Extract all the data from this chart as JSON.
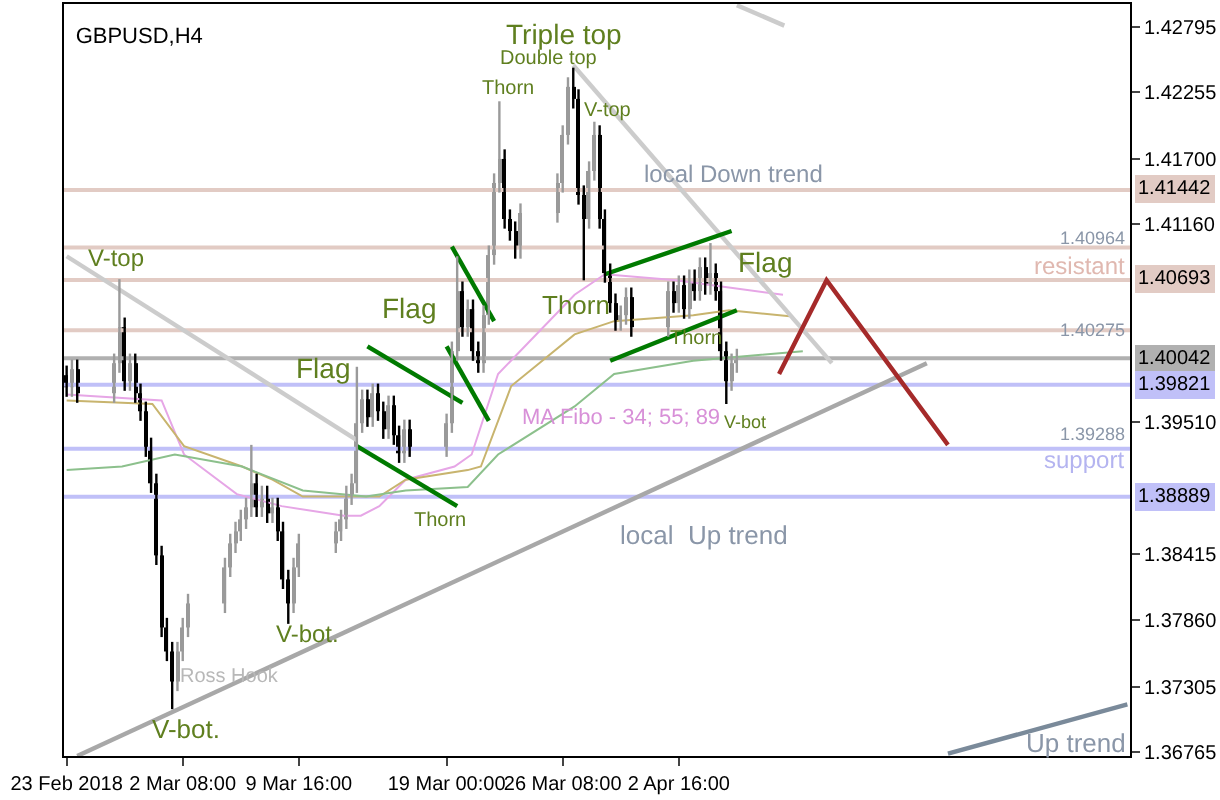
{
  "chart_data": {
    "type": "candlestick",
    "title": "GBPUSD,H4",
    "colors": [
      "#000000",
      "#9a9a9a",
      "#000000",
      "#9a9a9a",
      "#9a9a9a",
      "#000000",
      "#9a9a9a",
      "#000000",
      "#000000",
      "#000000",
      "#000000",
      "#000000",
      "#000000",
      "#000000",
      "#000000",
      "#9a9a9a",
      "#9a9a9a",
      "#9a9a9a",
      "#9a9a9a",
      "#9a9a9a",
      "#9a9a9a",
      "#9a9a9a",
      "#9a9a9a",
      "#9a9a9a",
      "#000000",
      "#9a9a9a",
      "#000000",
      "#9a9a9a",
      "#000000",
      "#000000",
      "#000000",
      "#9a9a9a",
      "#9a9a9a",
      "#9a9a9a",
      "#9a9a9a",
      "#9a9a9a",
      "#9a9a9a",
      "#9a9a9a",
      "#9a9a9a",
      "#000000",
      "#9a9a9a",
      "#000000",
      "#000000",
      "#9a9a9a",
      "#000000",
      "#000000",
      "#9a9a9a",
      "#000000",
      "#9a9a9a",
      "#9a9a9a",
      "#9a9a9a",
      "#000000",
      "#9a9a9a",
      "#000000",
      "#000000",
      "#9a9a9a",
      "#9a9a9a",
      "#9a9a9a",
      "#9a9a9a",
      "#000000",
      "#000000",
      "#000000",
      "#9a9a9a",
      "#9a9a9a",
      "#9a9a9a",
      "#9a9a9a",
      "#000000",
      "#000000",
      "#000000",
      "#9a9a9a",
      "#9a9a9a",
      "#000000",
      "#000000",
      "#000000",
      "#000000",
      "#9a9a9a",
      "#9a9a9a",
      "#000000",
      "#9a9a9a",
      "#000000",
      "#9a9a9a",
      "#000000",
      "#9a9a9a",
      "#000000",
      "#9a9a9a",
      "#000000",
      "#9a9a9a",
      "#000000",
      "#000000",
      "#000000",
      "#9a9a9a",
      "#9a9a9a"
    ],
    "grid": false,
    "x": [
      "2018-02-23T00:00",
      "2018-02-23T08:00",
      "2018-02-23T16:00",
      "2018-02-26T00:00",
      "2018-02-26T08:00",
      "2018-02-26T16:00",
      "2018-02-27T00:00",
      "2018-02-27T08:00",
      "2018-02-27T16:00",
      "2018-02-28T00:00",
      "2018-02-28T08:00",
      "2018-02-28T16:00",
      "2018-03-01T00:00",
      "2018-03-01T08:00",
      "2018-03-01T16:00",
      "2018-03-02T00:00",
      "2018-03-02T08:00",
      "2018-03-02T16:00",
      "2018-03-05T00:00",
      "2018-03-05T08:00",
      "2018-03-05T16:00",
      "2018-03-06T00:00",
      "2018-03-06T08:00",
      "2018-03-06T16:00",
      "2018-03-07T00:00",
      "2018-03-07T08:00",
      "2018-03-07T16:00",
      "2018-03-08T00:00",
      "2018-03-08T08:00",
      "2018-03-08T16:00",
      "2018-03-09T00:00",
      "2018-03-09T08:00",
      "2018-03-09T16:00",
      "2018-03-12T00:00",
      "2018-03-12T08:00",
      "2018-03-12T16:00",
      "2018-03-13T00:00",
      "2018-03-13T08:00",
      "2018-03-13T16:00",
      "2018-03-14T00:00",
      "2018-03-14T08:00",
      "2018-03-14T16:00",
      "2018-03-15T00:00",
      "2018-03-15T08:00",
      "2018-03-15T16:00",
      "2018-03-16T00:00",
      "2018-03-16T08:00",
      "2018-03-16T16:00",
      "2018-03-19T00:00",
      "2018-03-19T08:00",
      "2018-03-19T16:00",
      "2018-03-20T00:00",
      "2018-03-20T08:00",
      "2018-03-20T16:00",
      "2018-03-21T00:00",
      "2018-03-21T08:00",
      "2018-03-21T16:00",
      "2018-03-22T00:00",
      "2018-03-22T08:00",
      "2018-03-22T16:00",
      "2018-03-23T00:00",
      "2018-03-23T08:00",
      "2018-03-23T16:00",
      "2018-03-26T00:00",
      "2018-03-26T08:00",
      "2018-03-26T16:00",
      "2018-03-27T00:00",
      "2018-03-27T08:00",
      "2018-03-27T16:00",
      "2018-03-28T00:00",
      "2018-03-28T08:00",
      "2018-03-28T16:00",
      "2018-03-29T00:00",
      "2018-03-29T08:00",
      "2018-03-29T16:00",
      "2018-03-30T00:00",
      "2018-03-30T08:00",
      "2018-03-30T16:00",
      "2018-04-02T00:00",
      "2018-04-02T08:00",
      "2018-04-02T16:00",
      "2018-04-03T00:00",
      "2018-04-03T08:00",
      "2018-04-03T16:00",
      "2018-04-04T00:00",
      "2018-04-04T08:00",
      "2018-04-04T16:00",
      "2018-04-05T00:00",
      "2018-04-05T08:00",
      "2018-04-05T16:00",
      "2018-04-06T00:00",
      "2018-04-06T08:00"
    ],
    "ohlc": [
      [
        1.399,
        1.3998,
        1.3972,
        1.398
      ],
      [
        1.398,
        1.4003,
        1.3972,
        1.3995
      ],
      [
        1.3995,
        1.4003,
        1.3967,
        1.3975
      ],
      [
        1.3975,
        1.4008,
        1.3967,
        1.4
      ],
      [
        1.4,
        1.407,
        1.3992,
        1.403
      ],
      [
        1.403,
        1.4038,
        1.3977,
        1.3985
      ],
      [
        1.3985,
        1.4008,
        1.3977,
        1.4
      ],
      [
        1.4,
        1.4008,
        1.3967,
        1.3975
      ],
      [
        1.3975,
        1.3983,
        1.3952,
        1.396
      ],
      [
        1.396,
        1.3968,
        1.3922,
        1.393
      ],
      [
        1.393,
        1.3938,
        1.3892,
        1.39
      ],
      [
        1.39,
        1.3908,
        1.3832,
        1.384
      ],
      [
        1.384,
        1.3848,
        1.3772,
        1.378
      ],
      [
        1.378,
        1.3788,
        1.3752,
        1.376
      ],
      [
        1.376,
        1.3768,
        1.3712,
        1.3735
      ],
      [
        1.3735,
        1.3768,
        1.3727,
        1.376
      ],
      [
        1.376,
        1.3788,
        1.3752,
        1.378
      ],
      [
        1.378,
        1.3808,
        1.3772,
        1.38
      ],
      [
        1.38,
        1.3838,
        1.3792,
        1.383
      ],
      [
        1.383,
        1.3858,
        1.3822,
        1.385
      ],
      [
        1.385,
        1.3868,
        1.3842,
        1.386
      ],
      [
        1.386,
        1.3878,
        1.3852,
        1.387
      ],
      [
        1.387,
        1.3888,
        1.3862,
        1.388
      ],
      [
        1.388,
        1.3932,
        1.3872,
        1.39
      ],
      [
        1.39,
        1.3908,
        1.3872,
        1.388
      ],
      [
        1.388,
        1.3898,
        1.3872,
        1.389
      ],
      [
        1.389,
        1.3898,
        1.3867,
        1.3875
      ],
      [
        1.3875,
        1.3888,
        1.3867,
        1.388
      ],
      [
        1.388,
        1.3888,
        1.3852,
        1.386
      ],
      [
        1.386,
        1.3868,
        1.3812,
        1.382
      ],
      [
        1.382,
        1.3828,
        1.3783,
        1.38
      ],
      [
        1.38,
        1.3838,
        1.3792,
        1.383
      ],
      [
        1.383,
        1.3858,
        1.3822,
        1.385
      ],
      [
        1.385,
        1.3868,
        1.3842,
        1.386
      ],
      [
        1.386,
        1.3878,
        1.3852,
        1.387
      ],
      [
        1.387,
        1.3898,
        1.3862,
        1.389
      ],
      [
        1.389,
        1.3908,
        1.3882,
        1.39
      ],
      [
        1.39,
        1.3997,
        1.3892,
        1.395
      ],
      [
        1.395,
        1.3978,
        1.3942,
        1.397
      ],
      [
        1.397,
        1.3978,
        1.3947,
        1.3955
      ],
      [
        1.3955,
        1.3983,
        1.3947,
        1.3975
      ],
      [
        1.3975,
        1.3983,
        1.3952,
        1.396
      ],
      [
        1.396,
        1.3968,
        1.3937,
        1.3945
      ],
      [
        1.3945,
        1.3973,
        1.3937,
        1.3965
      ],
      [
        1.3965,
        1.3973,
        1.3932,
        1.394
      ],
      [
        1.394,
        1.3948,
        1.3917,
        1.3925
      ],
      [
        1.3925,
        1.3953,
        1.3917,
        1.3945
      ],
      [
        1.3945,
        1.3953,
        1.3922,
        1.393
      ],
      [
        1.393,
        1.3958,
        1.3922,
        1.395
      ],
      [
        1.395,
        1.4018,
        1.3942,
        1.401
      ],
      [
        1.401,
        1.4089,
        1.4002,
        1.406
      ],
      [
        1.406,
        1.4068,
        1.4022,
        1.403
      ],
      [
        1.403,
        1.4053,
        1.4022,
        1.4045
      ],
      [
        1.4045,
        1.4053,
        1.4002,
        1.401
      ],
      [
        1.401,
        1.4018,
        1.3992,
        1.4
      ],
      [
        1.4,
        1.4048,
        1.3992,
        1.404
      ],
      [
        1.404,
        1.4098,
        1.4032,
        1.409
      ],
      [
        1.409,
        1.4158,
        1.4082,
        1.415
      ],
      [
        1.415,
        1.4218,
        1.4142,
        1.417
      ],
      [
        1.417,
        1.4178,
        1.4112,
        1.412
      ],
      [
        1.412,
        1.4128,
        1.4102,
        1.411
      ],
      [
        1.411,
        1.4118,
        1.4087,
        1.4095
      ],
      [
        1.4095,
        1.4133,
        1.4087,
        1.4125
      ],
      [
        1.4125,
        1.4158,
        1.4117,
        1.415
      ],
      [
        1.415,
        1.4198,
        1.4142,
        1.419
      ],
      [
        1.419,
        1.4238,
        1.4182,
        1.423
      ],
      [
        1.423,
        1.4246,
        1.4212,
        1.422
      ],
      [
        1.422,
        1.4228,
        1.4132,
        1.414
      ],
      [
        1.414,
        1.4148,
        1.4069,
        1.412
      ],
      [
        1.412,
        1.4168,
        1.4112,
        1.416
      ],
      [
        1.416,
        1.4201,
        1.4152,
        1.419
      ],
      [
        1.419,
        1.4198,
        1.4112,
        1.412
      ],
      [
        1.412,
        1.4128,
        1.4067,
        1.4075
      ],
      [
        1.4075,
        1.4083,
        1.4042,
        1.405
      ],
      [
        1.405,
        1.4058,
        1.4027,
        1.4035
      ],
      [
        1.4035,
        1.4048,
        1.4027,
        1.404
      ],
      [
        1.404,
        1.4063,
        1.4032,
        1.4055
      ],
      [
        1.4055,
        1.4063,
        1.4022,
        1.403
      ],
      [
        1.403,
        1.4068,
        1.4022,
        1.406
      ],
      [
        1.406,
        1.4068,
        1.4042,
        1.405
      ],
      [
        1.405,
        1.4073,
        1.4042,
        1.4065
      ],
      [
        1.4065,
        1.4073,
        1.4037,
        1.4045
      ],
      [
        1.4045,
        1.4078,
        1.4037,
        1.407
      ],
      [
        1.407,
        1.4078,
        1.4052,
        1.406
      ],
      [
        1.406,
        1.4088,
        1.4052,
        1.408
      ],
      [
        1.408,
        1.4088,
        1.4057,
        1.4065
      ],
      [
        1.4065,
        1.41,
        1.4057,
        1.4075
      ],
      [
        1.4075,
        1.4083,
        1.4052,
        1.406
      ],
      [
        1.406,
        1.4068,
        1.4002,
        1.401
      ],
      [
        1.401,
        1.4018,
        1.3966,
        1.3985
      ],
      [
        1.3985,
        1.4008,
        1.3977,
        1.4
      ],
      [
        1.4,
        1.4012,
        1.3992,
        1.4004
      ]
    ],
    "series": [
      {
        "type": "line",
        "color": "#e6a6e6",
        "x": [
          "2018-02-23T00:00",
          "2018-03-01T00:00",
          "2018-03-02T10:00",
          "2018-03-05T18:00",
          "2018-03-08T14:00",
          "2018-03-12T12:00",
          "2018-03-13T14:00",
          "2018-03-14T18:00",
          "2018-03-16T10:00",
          "2018-03-19T12:00",
          "2018-03-20T14:00",
          "2018-03-22T06:00",
          "2018-03-27T02:00",
          "2018-03-29T00:00",
          "2018-04-02T12:00",
          "2018-04-05T06:00",
          "2018-04-09T06:00"
        ],
        "values": [
          1.3974,
          1.3969,
          1.3924,
          1.3891,
          1.3881,
          1.3873,
          1.3873,
          1.3881,
          1.3903,
          1.3914,
          1.3924,
          1.3991,
          1.4057,
          1.4074,
          1.4069,
          1.4064,
          1.4057
        ]
      },
      {
        "type": "line",
        "color": "#c8b46e",
        "x": [
          "2018-02-23T00:00",
          "2018-02-28T10:00",
          "2018-03-02T10:00",
          "2018-03-06T02:00",
          "2018-03-08T00:00",
          "2018-03-09T22:00",
          "2018-03-14T18:00",
          "2018-03-16T10:00",
          "2018-03-20T08:00",
          "2018-03-21T04:00",
          "2018-03-23T02:00",
          "2018-03-27T02:00",
          "2018-03-29T14:00",
          "2018-04-03T14:00",
          "2018-04-05T20:00",
          "2018-04-09T16:00"
        ],
        "values": [
          1.3969,
          1.3966,
          1.3931,
          1.3914,
          1.3903,
          1.3889,
          1.3889,
          1.3903,
          1.3911,
          1.3914,
          1.3981,
          1.4024,
          1.4035,
          1.404,
          1.4044,
          1.4039
        ]
      },
      {
        "type": "line",
        "color": "#8cc08c",
        "x": [
          "2018-02-23T00:00",
          "2018-02-26T12:00",
          "2018-03-01T20:00",
          "2018-03-06T02:00",
          "2018-03-09T22:00",
          "2018-03-13T22:00",
          "2018-03-16T10:00",
          "2018-03-20T08:00",
          "2018-03-22T06:00",
          "2018-03-27T02:00",
          "2018-03-29T14:00",
          "2018-04-03T14:00",
          "2018-04-10T12:00"
        ],
        "values": [
          1.3911,
          1.3914,
          1.3924,
          1.3914,
          1.3894,
          1.3889,
          1.3894,
          1.3897,
          1.3924,
          1.3964,
          1.3991,
          1.4002,
          1.401
        ]
      },
      {
        "type": "line",
        "color": "#cccccc",
        "x": [
          "2018-02-23T00:00",
          "2018-03-13T08:00"
        ],
        "values": [
          1.4089,
          1.3936
        ]
      },
      {
        "type": "line",
        "color": "#cccccc",
        "x": [
          "2018-03-27T00:00",
          "2018-04-12T08:00"
        ],
        "values": [
          1.4248,
          1.4
        ]
      },
      {
        "type": "line",
        "color": "#cccccc",
        "x": [
          "2018-04-06T08:00",
          "2018-04-09T08:00"
        ],
        "values": [
          1.4298,
          1.4281
        ]
      },
      {
        "type": "line",
        "color": "#a8a8a8",
        "x": [
          "2018-02-23T16:00",
          "2018-04-18T08:00"
        ],
        "values": [
          1.3673,
          1.4
        ]
      },
      {
        "type": "line",
        "color": "#7a8a9a",
        "x": [
          "2018-04-19T16:00",
          "2018-05-01T00:00"
        ],
        "values": [
          1.3675,
          1.3716
        ]
      },
      {
        "type": "line",
        "color": "#007a00",
        "x": [
          "2018-03-14T00:00",
          "2018-03-20T00:00"
        ],
        "values": [
          1.4014,
          1.3967
        ]
      },
      {
        "type": "line",
        "color": "#007a00",
        "x": [
          "2018-03-13T08:00",
          "2018-03-19T16:00"
        ],
        "values": [
          1.3931,
          1.3881
        ]
      },
      {
        "type": "line",
        "color": "#007a00",
        "x": [
          "2018-03-19T08:00",
          "2018-03-22T00:00"
        ],
        "values": [
          1.4097,
          1.4035
        ]
      },
      {
        "type": "line",
        "color": "#007a00",
        "x": [
          "2018-03-19T00:00",
          "2018-03-21T16:00"
        ],
        "values": [
          1.4014,
          1.3952
        ]
      },
      {
        "type": "line",
        "color": "#007a00",
        "x": [
          "2018-03-29T00:00",
          "2018-04-06T00:00"
        ],
        "values": [
          1.4074,
          1.411
        ]
      },
      {
        "type": "line",
        "color": "#007a00",
        "x": [
          "2018-03-29T08:00",
          "2018-04-06T08:00"
        ],
        "values": [
          1.4002,
          1.4044
        ]
      },
      {
        "type": "line",
        "color": "#a52a2a",
        "x": [
          "2018-04-09T00:00",
          "2018-04-12T00:00",
          "2018-04-19T16:00"
        ],
        "values": [
          1.3991,
          1.4069,
          1.3932
        ]
      }
    ],
    "ylim": [
      1.3673,
      1.4299
    ],
    "yticks": [
      1.42795,
      1.42255,
      {
        "value": 1.417,
        "label": "1.41700"
      },
      {
        "value": 1.4116,
        "label": "1.41160"
      },
      {
        "value": 1.3951,
        "label": "1.39510"
      },
      1.38415,
      {
        "value": 1.3786,
        "label": "1.37860"
      },
      1.37305,
      1.36765
    ],
    "xlim": [
      "2018-02-22T20:00",
      "2018-05-01T04:00"
    ],
    "xticks": [
      {
        "value": "2018-02-23T00:00",
        "label": "23 Feb 2018"
      },
      {
        "value": "2018-03-02T08:00",
        "label": "2 Mar 08:00"
      },
      {
        "value": "2018-03-09T16:00",
        "label": "9 Mar 16:00"
      },
      {
        "value": "2018-03-19T00:00",
        "label": "19 Mar 00:00"
      },
      {
        "value": "2018-03-26T08:00",
        "label": "26 Mar 08:00"
      },
      {
        "value": "2018-04-02T16:00",
        "label": "2 Apr 16:00"
      }
    ],
    "ref_lines": [
      {
        "axis": "y",
        "value": 1.41442,
        "label": "1.41442",
        "color": "#e2cbc4"
      },
      {
        "axis": "y",
        "value": 1.40964,
        "color": "#e2cbc4"
      },
      {
        "axis": "y",
        "value": 1.40693,
        "label": "1.40693",
        "color": "#e2cbc4"
      },
      {
        "axis": "y",
        "value": 1.40275,
        "color": "#e2cbc4"
      },
      {
        "axis": "y",
        "value": 1.40042,
        "label": "1.40042",
        "color": "#b0b0b0"
      },
      {
        "axis": "y",
        "value": 1.39821,
        "label": "1.39821",
        "color": "#c0c0f8"
      },
      {
        "axis": "y",
        "value": 1.39288,
        "color": "#c0c0f8"
      },
      {
        "axis": "y",
        "value": 1.38889,
        "label": "1.38889",
        "color": "#c0c0f8"
      }
    ],
    "annotations": [
      "V-top",
      "V-bot.",
      "Ross Hook",
      "V-bot.",
      "Flag",
      "Thorn",
      "Flag",
      "Triple top",
      "Double top",
      "Thorn",
      "V-top",
      "Thorn",
      "local Down trend",
      "Flag",
      "Thorn",
      "V-bot",
      "MA Fibo - 34; 55; 89",
      "local  Up trend",
      "Up trend",
      "resistant",
      "support",
      "1.40964",
      "1.40275",
      "1.39288"
    ]
  }
}
